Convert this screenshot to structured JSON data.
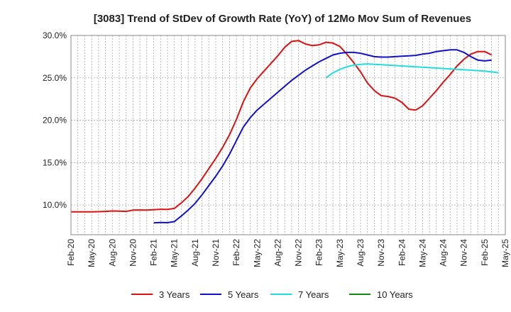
{
  "chart_data": {
    "type": "line",
    "title": "[3083]  Trend of StDev of Growth Rate (YoY) of 12Mo Mov Sum of Revenues",
    "xlabel": "",
    "ylabel": "",
    "ylim": [
      0.065,
      0.3
    ],
    "x_tick_labels": [
      "Feb-20",
      "May-20",
      "Aug-20",
      "Nov-20",
      "Feb-21",
      "May-21",
      "Aug-21",
      "Nov-21",
      "Feb-22",
      "May-22",
      "Aug-22",
      "Nov-22",
      "Feb-23",
      "May-23",
      "Aug-23",
      "Nov-23",
      "Feb-24",
      "May-24",
      "Aug-24",
      "Nov-24",
      "Feb-25",
      "May-25"
    ],
    "y_ticks": [
      0.1,
      0.15,
      0.2,
      0.25,
      0.3
    ],
    "y_tick_labels": [
      "10.0%",
      "15.0%",
      "20.0%",
      "25.0%",
      "30.0%"
    ],
    "x_start": "Feb-20",
    "x_count": 64,
    "series": [
      {
        "name": "3 Years",
        "color": "#dd1111",
        "start_index": 0,
        "values": [
          0.092,
          0.092,
          0.092,
          0.092,
          0.0922,
          0.0925,
          0.093,
          0.0928,
          0.0925,
          0.094,
          0.0942,
          0.094,
          0.0945,
          0.095,
          0.0948,
          0.096,
          0.1025,
          0.11,
          0.12,
          0.131,
          0.143,
          0.155,
          0.168,
          0.183,
          0.201,
          0.222,
          0.238,
          0.249,
          0.258,
          0.267,
          0.276,
          0.286,
          0.293,
          0.294,
          0.29,
          0.288,
          0.289,
          0.292,
          0.291,
          0.287,
          0.278,
          0.268,
          0.257,
          0.244,
          0.235,
          0.229,
          0.228,
          0.226,
          0.221,
          0.213,
          0.212,
          0.217,
          0.226,
          0.235,
          0.245,
          0.254,
          0.264,
          0.272,
          0.278,
          0.281,
          0.281,
          0.277
        ]
      },
      {
        "name": "5 Years",
        "color": "#1111cc",
        "start_index": 12,
        "values": [
          0.079,
          0.0795,
          0.0792,
          0.0805,
          0.087,
          0.094,
          0.102,
          0.112,
          0.123,
          0.134,
          0.146,
          0.16,
          0.176,
          0.192,
          0.203,
          0.212,
          0.219,
          0.226,
          0.233,
          0.24,
          0.247,
          0.253,
          0.259,
          0.264,
          0.269,
          0.273,
          0.277,
          0.279,
          0.28,
          0.28,
          0.279,
          0.277,
          0.275,
          0.2745,
          0.2745,
          0.275,
          0.2755,
          0.276,
          0.2765,
          0.278,
          0.279,
          0.281,
          0.282,
          0.283,
          0.283,
          0.28,
          0.275,
          0.271,
          0.27,
          0.271
        ]
      },
      {
        "name": "7 Years",
        "color": "#22dddd",
        "start_index": 37,
        "values": [
          0.25,
          0.256,
          0.26,
          0.263,
          0.265,
          0.266,
          0.2665,
          0.266,
          0.2655,
          0.265,
          0.2645,
          0.264,
          0.2635,
          0.263,
          0.2625,
          0.262,
          0.2615,
          0.261,
          0.2605,
          0.26,
          0.2595,
          0.259,
          0.2585,
          0.258,
          0.257,
          0.256
        ]
      },
      {
        "name": "10 Years",
        "color": "#118811",
        "start_index": 0,
        "values": []
      }
    ]
  }
}
